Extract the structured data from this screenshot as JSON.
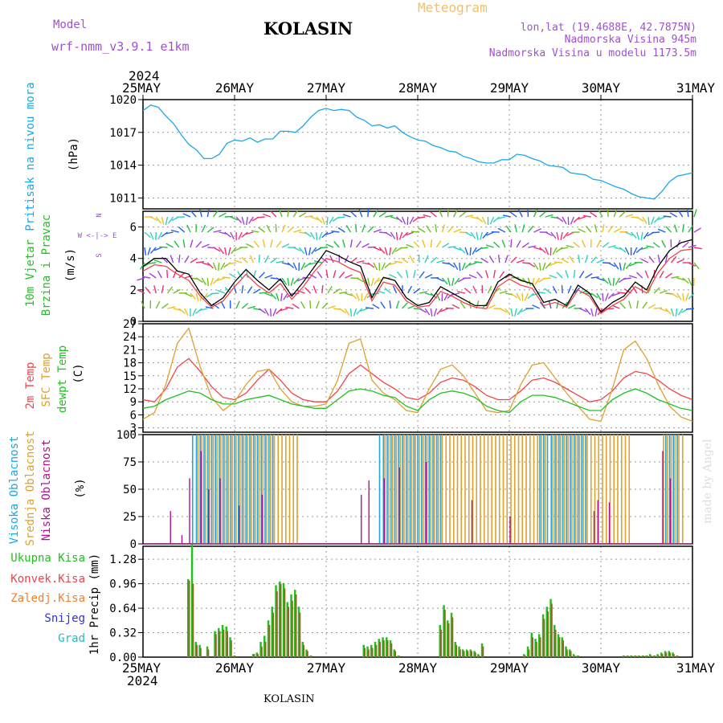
{
  "header": {
    "model_label": "Model",
    "model_name": "wrf-nmm_v3.9.1  e1km",
    "station": "KOLASIN",
    "product": "Meteogram",
    "lonlat": "lon,lat (19.4688E, 42.7875N)",
    "elevation": "Nadmorska Visina 945m",
    "model_elevation": "Nadmorska Visina u modelu 1173.5m",
    "year": "2024",
    "footer": "KOLASIN",
    "credit": "made by Angel"
  },
  "time_axis": {
    "labels": [
      "25MAY",
      "26MAY",
      "27MAY",
      "28MAY",
      "29MAY",
      "30MAY",
      "31MAY"
    ],
    "hours_per_day": 24
  },
  "colors": {
    "pressure": "#1ca7e8",
    "temp2m": "#f0444b",
    "sfc_temp": "#e0a030",
    "dewpt": "#22c020",
    "cloud_high": "#1ca7e8",
    "cloud_mid": "#e0a030",
    "cloud_low": "#b01090",
    "precip_total": "#22c020",
    "precip_conv": "#f0444b",
    "precip_frz": "#f08030",
    "precip_snow": "#3030e0",
    "precip_hail": "#20c0c0",
    "purple_text": "#a050d0",
    "title_orange": "#f0c070"
  },
  "chart_data": [
    {
      "type": "line",
      "panel": "pressure",
      "ylabel": "Pritisak na nivou mora",
      "unit": "(hPa)",
      "ylim": [
        1010,
        1020
      ],
      "yticks": [
        1011,
        1014,
        1017,
        1020
      ],
      "x_hours": [
        0,
        2,
        4,
        6,
        8,
        10,
        12,
        14,
        16,
        18,
        20,
        22,
        24,
        26,
        28,
        30,
        32,
        34,
        36,
        38,
        40,
        42,
        44,
        46,
        48,
        50,
        52,
        54,
        56,
        58,
        60,
        62,
        64,
        66,
        68,
        70,
        72,
        74,
        76,
        78,
        80,
        82,
        84,
        86,
        88,
        90,
        92,
        94,
        96,
        98,
        100,
        102,
        104,
        106,
        108,
        110,
        112,
        114,
        116,
        118,
        120,
        122,
        124,
        126,
        128,
        130,
        132,
        134,
        136,
        138,
        140,
        144
      ],
      "series": [
        {
          "values": [
            1019.0,
            1019.5,
            1019.3,
            1018.5,
            1017.8,
            1016.8,
            1015.9,
            1015.4,
            1014.6,
            1014.6,
            1015.0,
            1016.0,
            1016.3,
            1016.2,
            1016.5,
            1016.1,
            1016.4,
            1016.4,
            1017.1,
            1017.1,
            1017.0,
            1017.6,
            1018.4,
            1019.0,
            1019.2,
            1019.0,
            1019.1,
            1019.0,
            1018.4,
            1018.1,
            1017.6,
            1017.7,
            1017.4,
            1017.6,
            1017.0,
            1016.6,
            1016.3,
            1016.2,
            1015.8,
            1015.6,
            1015.3,
            1015.2,
            1014.8,
            1014.6,
            1014.3,
            1014.2,
            1014.2,
            1014.5,
            1014.5,
            1015.0,
            1014.9,
            1014.6,
            1014.4,
            1014.0,
            1013.9,
            1013.8,
            1013.3,
            1013.2,
            1013.1,
            1012.7,
            1012.6,
            1012.3,
            1012.0,
            1011.8,
            1011.4,
            1011.1,
            1011.0,
            1010.9,
            1011.6,
            1012.5,
            1013.0,
            1013.3
          ]
        }
      ]
    },
    {
      "type": "line",
      "panel": "wind",
      "ylabel": "10m Vjetar Brzina i Pravac",
      "unit": "(m/s)",
      "compass": [
        "N",
        "W <-|-> E",
        "S"
      ],
      "ylim": [
        0,
        7
      ],
      "yticks": [
        0,
        2,
        4,
        6
      ],
      "x_hours": [
        0,
        3,
        6,
        9,
        12,
        15,
        18,
        21,
        24,
        27,
        30,
        33,
        36,
        39,
        42,
        45,
        48,
        51,
        54,
        57,
        60,
        63,
        66,
        69,
        72,
        75,
        78,
        81,
        84,
        87,
        90,
        93,
        96,
        99,
        102,
        105,
        108,
        111,
        114,
        117,
        120,
        123,
        126,
        129,
        132,
        135,
        138,
        141,
        144
      ],
      "series": [
        {
          "values": [
            3.5,
            4.0,
            4.0,
            3.2,
            3.0,
            1.8,
            1.0,
            1.5,
            2.5,
            3.3,
            2.6,
            2.0,
            2.7,
            1.6,
            2.5,
            3.5,
            4.5,
            4.2,
            3.8,
            3.5,
            1.5,
            2.8,
            2.6,
            1.5,
            1.0,
            1.2,
            2.2,
            1.8,
            1.4,
            1.0,
            1.0,
            2.5,
            3.0,
            2.6,
            2.4,
            1.2,
            1.4,
            1.0,
            2.3,
            1.8,
            0.6,
            1.2,
            1.6,
            2.5,
            2.0,
            3.5,
            4.5,
            5.0,
            5.2
          ],
          "color": "#000000"
        },
        {
          "values": [
            3.2,
            3.6,
            3.5,
            3.0,
            2.6,
            1.6,
            0.9,
            1.3,
            2.2,
            3.0,
            2.3,
            1.8,
            2.4,
            1.4,
            2.2,
            3.2,
            4.0,
            3.8,
            3.4,
            3.1,
            1.3,
            2.5,
            2.3,
            1.3,
            0.9,
            1.0,
            1.9,
            1.6,
            1.2,
            0.9,
            0.8,
            2.2,
            2.7,
            2.3,
            2.1,
            1.0,
            1.2,
            0.9,
            2.0,
            1.6,
            0.5,
            1.0,
            1.4,
            2.2,
            1.8,
            3.1,
            4.0,
            4.5,
            4.6
          ],
          "color": "#f0444b"
        }
      ]
    },
    {
      "type": "line",
      "panel": "temperature",
      "ylabels": [
        "2m Temp",
        "SFC Temp",
        "dewpt Temp"
      ],
      "unit": "(C)",
      "ylim": [
        2,
        27
      ],
      "yticks": [
        3,
        6,
        9,
        12,
        15,
        18,
        21,
        24,
        27
      ],
      "x_hours": [
        0,
        3,
        6,
        9,
        12,
        15,
        18,
        21,
        24,
        27,
        30,
        33,
        36,
        39,
        42,
        45,
        48,
        51,
        54,
        57,
        60,
        63,
        66,
        69,
        72,
        75,
        78,
        81,
        84,
        87,
        90,
        93,
        96,
        99,
        102,
        105,
        108,
        111,
        114,
        117,
        120,
        123,
        126,
        129,
        132,
        135,
        138,
        141,
        144
      ],
      "series": [
        {
          "name": "2m Temp",
          "values": [
            9.5,
            9.0,
            12.0,
            17.0,
            19.0,
            16.0,
            12.5,
            10.0,
            9.5,
            11.0,
            14.0,
            16.5,
            14.0,
            11.0,
            9.5,
            9.0,
            9.0,
            11.5,
            15.5,
            17.5,
            15.5,
            13.5,
            12.0,
            10.0,
            9.5,
            11.0,
            13.5,
            14.5,
            14.0,
            12.5,
            10.5,
            9.5,
            9.5,
            11.5,
            14.0,
            14.5,
            13.5,
            12.0,
            10.5,
            9.0,
            9.5,
            11.5,
            14.5,
            16.0,
            15.5,
            14.0,
            12.0,
            10.5,
            9.5
          ]
        },
        {
          "name": "SFC Temp",
          "values": [
            5.0,
            6.5,
            13.0,
            22.5,
            26.0,
            17.0,
            10.0,
            7.0,
            9.0,
            13.0,
            16.0,
            16.5,
            12.0,
            9.0,
            8.0,
            8.0,
            8.5,
            14.0,
            22.5,
            23.5,
            14.0,
            11.0,
            9.5,
            7.0,
            6.5,
            12.0,
            16.5,
            17.5,
            15.0,
            11.0,
            7.0,
            6.5,
            7.0,
            13.0,
            17.5,
            18.0,
            14.5,
            11.0,
            8.0,
            5.0,
            4.5,
            12.0,
            21.0,
            23.0,
            19.0,
            13.0,
            8.0,
            5.5,
            4.5
          ]
        },
        {
          "name": "dewpt Temp",
          "values": [
            7.5,
            8.0,
            9.5,
            10.5,
            11.5,
            11.0,
            9.5,
            8.5,
            8.5,
            9.5,
            10.0,
            10.5,
            9.5,
            8.5,
            8.0,
            7.5,
            7.5,
            9.5,
            11.5,
            12.0,
            11.5,
            10.5,
            10.0,
            8.0,
            7.0,
            9.5,
            11.0,
            11.5,
            11.0,
            10.0,
            8.0,
            7.0,
            6.5,
            9.0,
            10.5,
            10.5,
            10.0,
            9.0,
            8.0,
            7.0,
            7.0,
            9.5,
            11.0,
            12.0,
            11.0,
            9.5,
            8.5,
            7.5,
            7.0
          ]
        }
      ]
    },
    {
      "type": "bar",
      "panel": "clouds",
      "ylabels": [
        "Visoka Oblacnost",
        "Srednja Oblacnost",
        "Niska Oblacnost"
      ],
      "unit": "(%)",
      "ylim": [
        0,
        100
      ],
      "yticks": [
        0,
        25,
        50,
        75,
        100
      ],
      "series": [
        {
          "name": "Visoka Oblacnost",
          "segments": [
            [
              13,
              34,
              100
            ],
            [
              62,
              78,
              100
            ],
            [
              104,
              116,
              100
            ],
            [
              137,
              140,
              100
            ]
          ]
        },
        {
          "name": "Srednja Oblacnost",
          "segments": [
            [
              14,
              40,
              100
            ],
            [
              63,
              105,
              100
            ],
            [
              107,
              127,
              100
            ],
            [
              136,
              141,
              100
            ]
          ]
        },
        {
          "name": "Niska Oblacnost",
          "spikes": [
            [
              7,
              30
            ],
            [
              10,
              8
            ],
            [
              12,
              60
            ],
            [
              15,
              85
            ],
            [
              17,
              50
            ],
            [
              20,
              60
            ],
            [
              25,
              35
            ],
            [
              31,
              45
            ],
            [
              57,
              45
            ],
            [
              59,
              58
            ],
            [
              63,
              60
            ],
            [
              67,
              70
            ],
            [
              74,
              75
            ],
            [
              86,
              40
            ],
            [
              96,
              25
            ],
            [
              118,
              30
            ],
            [
              119,
              40
            ],
            [
              122,
              38
            ],
            [
              136,
              85
            ],
            [
              138,
              60
            ]
          ]
        }
      ]
    },
    {
      "type": "bar",
      "panel": "precipitation",
      "ylabels": [
        "Ukupna Kisa",
        "Konvek.Kisa",
        "Zaledj.Kisa",
        "Snijeg",
        "Grad"
      ],
      "unit": "1hr Precip (mm)",
      "ylim": [
        0,
        1.45
      ],
      "yticks": [
        0,
        0.32,
        0.64,
        0.96,
        1.28
      ],
      "x_hours": [
        12,
        13,
        14,
        15,
        17,
        19,
        20,
        21,
        22,
        23,
        24,
        29,
        30,
        31,
        32,
        33,
        34,
        35,
        36,
        37,
        38,
        39,
        40,
        41,
        42,
        43,
        44,
        58,
        59,
        60,
        61,
        62,
        63,
        64,
        65,
        66,
        67,
        78,
        79,
        80,
        81,
        82,
        83,
        84,
        85,
        86,
        87,
        88,
        89,
        100,
        101,
        102,
        103,
        104,
        105,
        106,
        107,
        108,
        109,
        110,
        111,
        112,
        113,
        114,
        126,
        127,
        128,
        129,
        130,
        131,
        132,
        133,
        134,
        135,
        136,
        137,
        138,
        139,
        140
      ],
      "series": [
        {
          "name": "Ukupna Kisa",
          "values": [
            1.02,
            1.47,
            0.2,
            0.16,
            0.14,
            0.34,
            0.38,
            0.42,
            0.4,
            0.26,
            0.02,
            0.04,
            0.06,
            0.2,
            0.28,
            0.48,
            0.66,
            0.94,
            0.99,
            0.97,
            0.72,
            0.82,
            0.88,
            0.66,
            0.2,
            0.1,
            0.02,
            0.16,
            0.14,
            0.16,
            0.2,
            0.24,
            0.26,
            0.26,
            0.22,
            0.1,
            0.02,
            0.42,
            0.68,
            0.48,
            0.58,
            0.2,
            0.14,
            0.1,
            0.1,
            0.1,
            0.08,
            0.04,
            0.18,
            0.04,
            0.14,
            0.32,
            0.24,
            0.3,
            0.56,
            0.66,
            0.76,
            0.42,
            0.3,
            0.26,
            0.14,
            0.1,
            0.04,
            0.02,
            0.02,
            0.02,
            0.02,
            0.02,
            0.02,
            0.02,
            0.02,
            0.04,
            0.02,
            0.04,
            0.06,
            0.08,
            0.08,
            0.06,
            0.02
          ]
        },
        {
          "name": "Konvek.Kisa",
          "values": [
            1.0,
            0.96,
            0.16,
            0.12,
            0.1,
            0.3,
            0.34,
            0.36,
            0.34,
            0.22,
            0.02,
            0.04,
            0.04,
            0.14,
            0.2,
            0.42,
            0.58,
            0.86,
            0.96,
            0.9,
            0.66,
            0.74,
            0.82,
            0.58,
            0.16,
            0.08,
            0.02,
            0.12,
            0.1,
            0.12,
            0.16,
            0.2,
            0.22,
            0.22,
            0.18,
            0.08,
            0.02,
            0.36,
            0.62,
            0.44,
            0.52,
            0.16,
            0.1,
            0.08,
            0.08,
            0.08,
            0.06,
            0.02,
            0.14,
            0.02,
            0.1,
            0.26,
            0.2,
            0.26,
            0.5,
            0.6,
            0.7,
            0.36,
            0.26,
            0.22,
            0.1,
            0.08,
            0.02,
            0.02,
            0.02,
            0.02,
            0.02,
            0.02,
            0.02,
            0.02,
            0.02,
            0.02,
            0.02,
            0.02,
            0.04,
            0.06,
            0.06,
            0.04,
            0.02
          ]
        }
      ]
    }
  ]
}
